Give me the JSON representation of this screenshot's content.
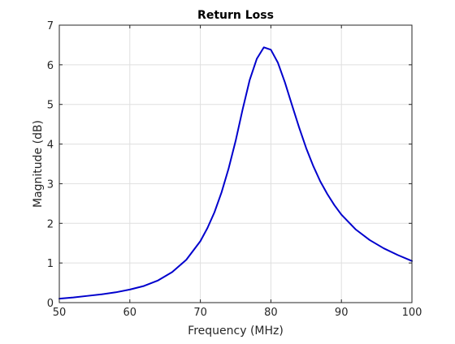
{
  "chart_data": {
    "type": "line",
    "title": "Return Loss",
    "xlabel": "Frequency (MHz)",
    "ylabel": "Magnitude (dB)",
    "xlim": [
      50,
      100
    ],
    "ylim": [
      0,
      7
    ],
    "xticks": [
      "50",
      "60",
      "70",
      "80",
      "90",
      "100"
    ],
    "yticks": [
      "0",
      "1",
      "2",
      "3",
      "4",
      "5",
      "6",
      "7"
    ],
    "grid": true,
    "series": [
      {
        "color": "#0000cd",
        "x": [
          50,
          52,
          54,
          56,
          58,
          60,
          62,
          64,
          66,
          68,
          70,
          71,
          72,
          73,
          74,
          75,
          76,
          77,
          78,
          79,
          80,
          81,
          82,
          83,
          84,
          85,
          86,
          87,
          88,
          89,
          90,
          92,
          94,
          96,
          98,
          100
        ],
        "y": [
          0.1,
          0.13,
          0.17,
          0.21,
          0.26,
          0.33,
          0.42,
          0.56,
          0.77,
          1.08,
          1.55,
          1.88,
          2.28,
          2.78,
          3.38,
          4.08,
          4.88,
          5.62,
          6.15,
          6.44,
          6.38,
          6.05,
          5.55,
          4.98,
          4.42,
          3.9,
          3.45,
          3.06,
          2.74,
          2.46,
          2.22,
          1.85,
          1.58,
          1.37,
          1.2,
          1.05
        ]
      }
    ]
  }
}
